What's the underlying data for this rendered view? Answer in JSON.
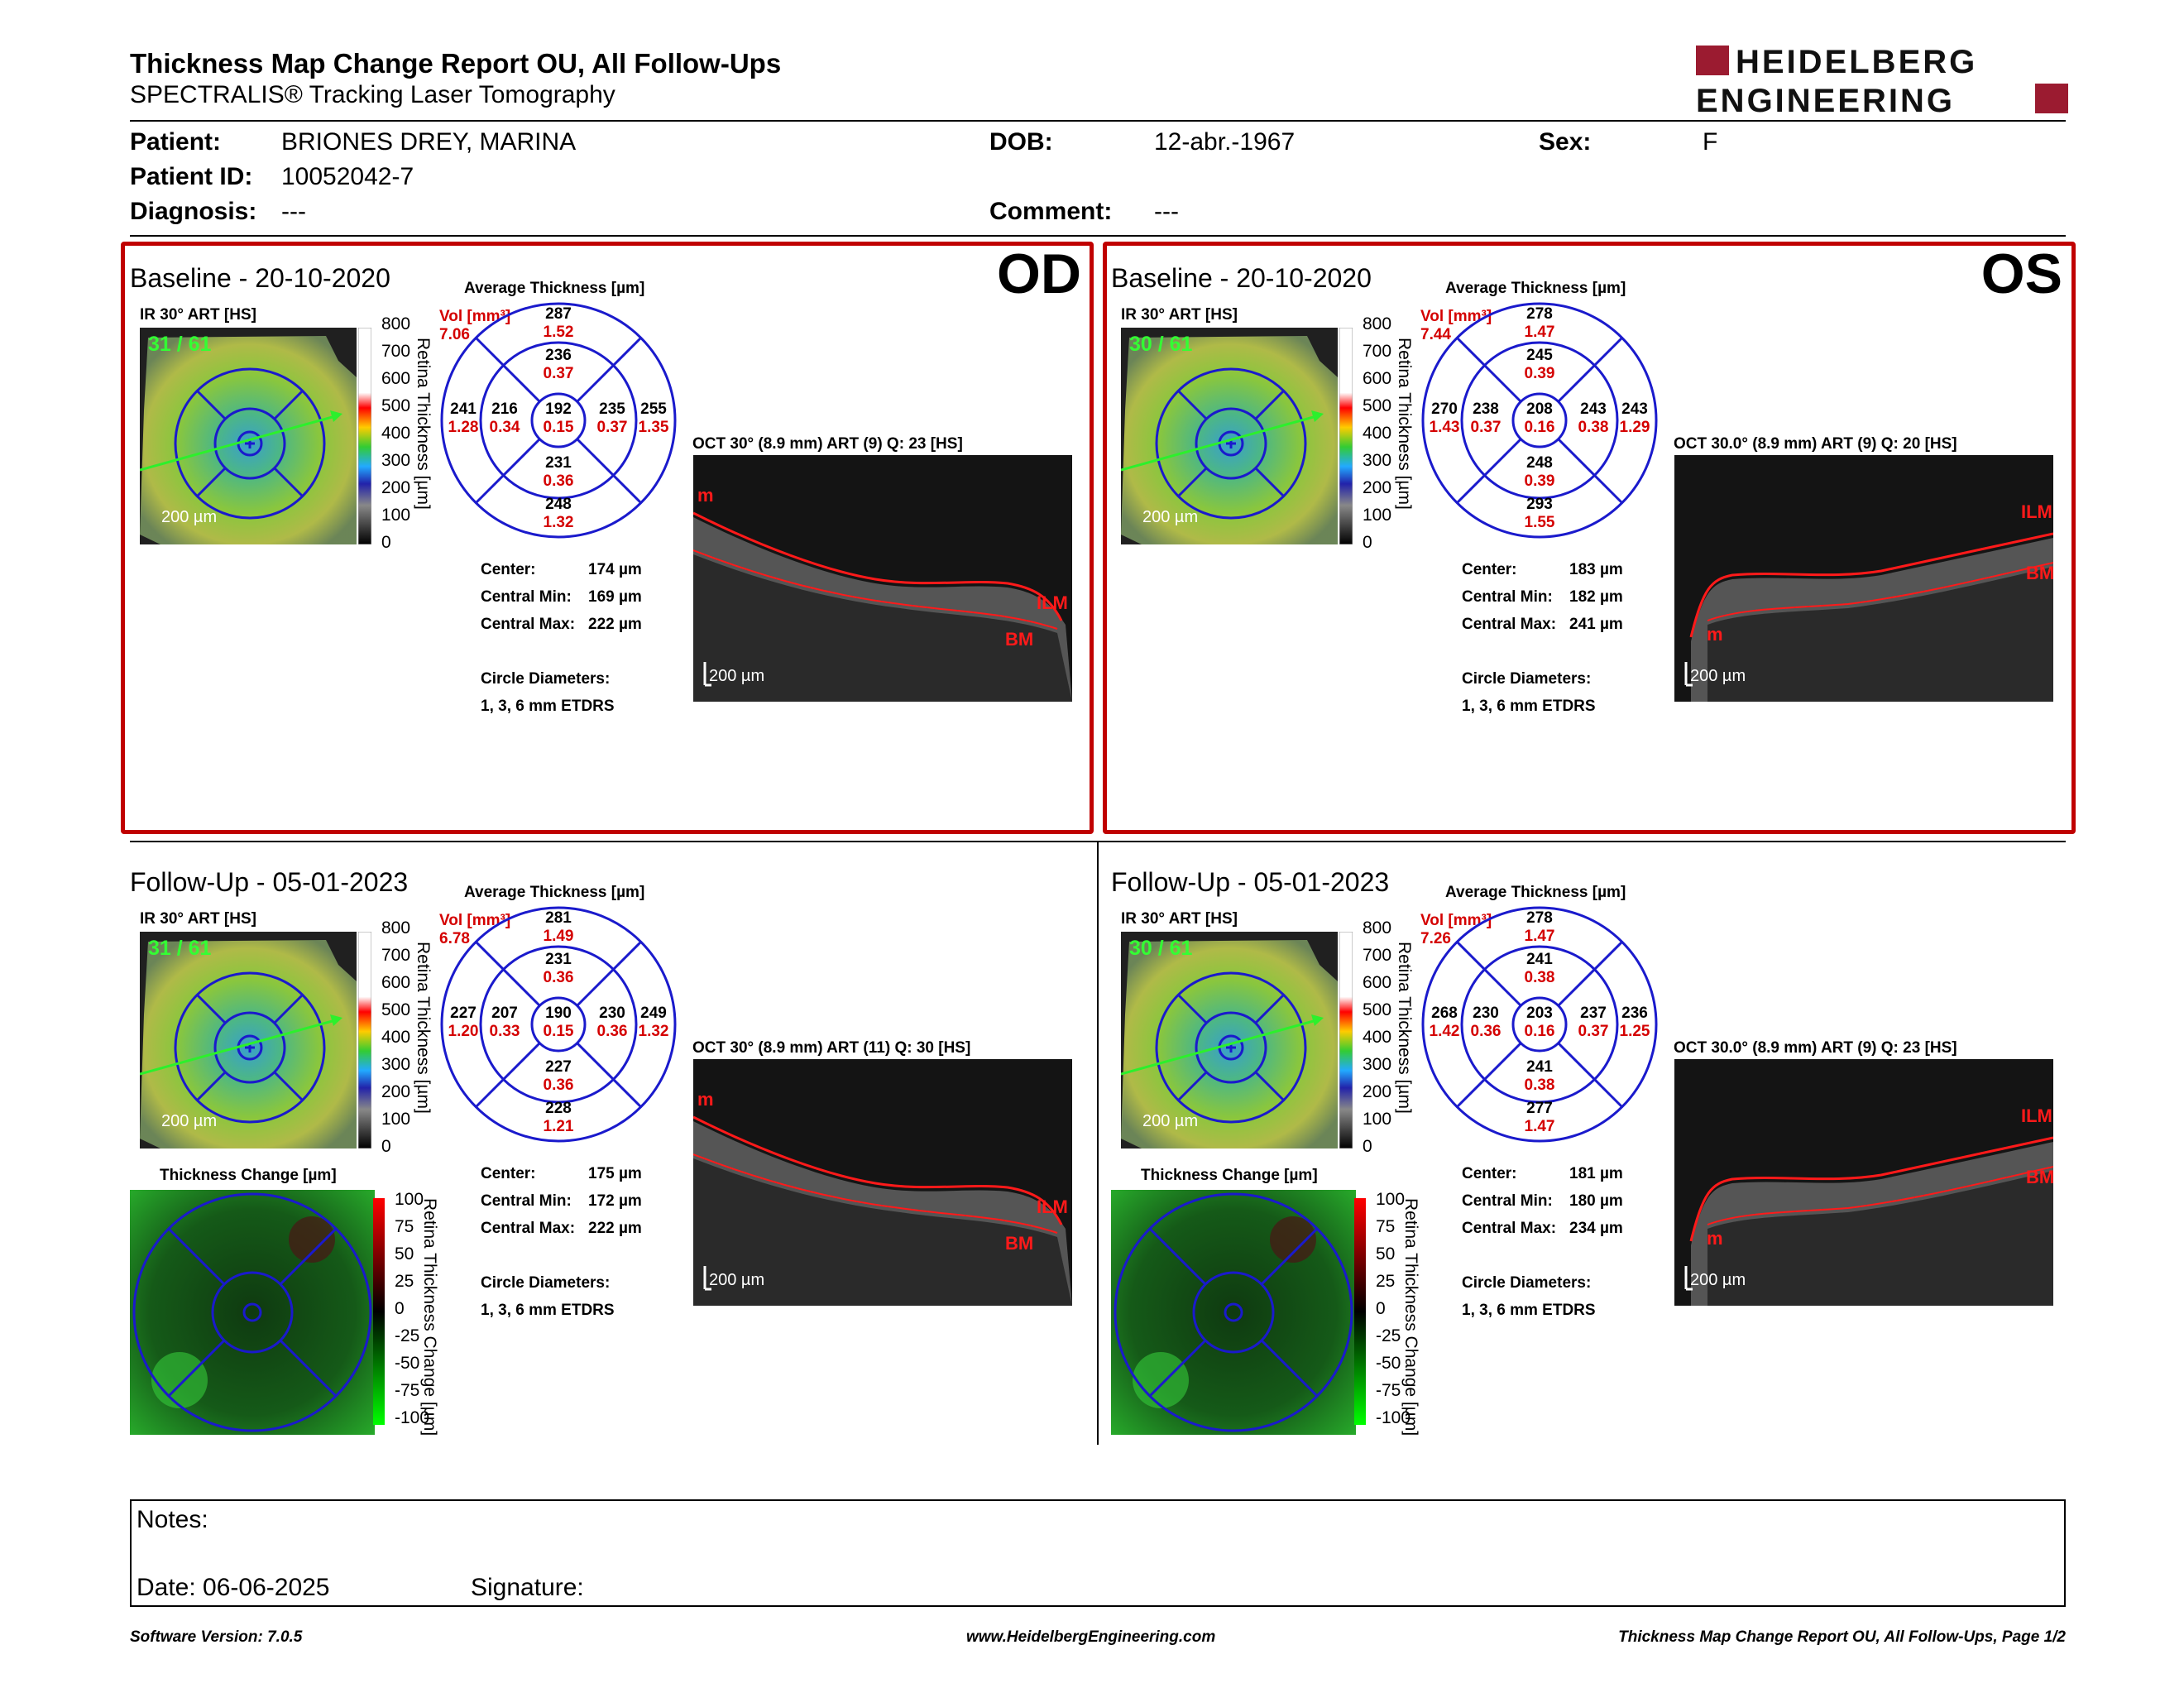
{
  "header": {
    "title": "Thickness Map Change Report OU, All Follow-Ups",
    "subtitle": "SPECTRALIS® Tracking Laser Tomography",
    "logo_line1": "HEIDELBERG",
    "logo_line2": "ENGINEERING"
  },
  "patient": {
    "patient_label": "Patient:",
    "patient_value": "BRIONES DREY, MARINA",
    "id_label": "Patient ID:",
    "id_value": "10052042-7",
    "diagnosis_label": "Diagnosis:",
    "diagnosis_value": "---",
    "dob_label": "DOB:",
    "dob_value": "12-abr.-1967",
    "comment_label": "Comment:",
    "comment_value": "---",
    "sex_label": "Sex:",
    "sex_value": "F"
  },
  "common": {
    "avg_label": "Average Thickness [µm]",
    "ir_label": "IR 30° ART [HS]",
    "vol_label": "Vol [mm³]",
    "scale_bar": "200 µm",
    "center_label": "Center:",
    "cmin_label": "Central Min:",
    "cmax_label": "Central Max:",
    "circle_label": "Circle Diameters:",
    "circle_value": "1, 3, 6 mm ETDRS",
    "thickness_axis": "Retina Thickness [µm]",
    "change_label": "Thickness Change [µm]",
    "change_axis": "Retina Thickness Change [µm]",
    "thick_ticks": [
      "800",
      "700",
      "600",
      "500",
      "400",
      "300",
      "200",
      "100",
      "0"
    ],
    "change_ticks": [
      "100",
      "75",
      "50",
      "25",
      "0",
      "-25",
      "-50",
      "-75",
      "-100"
    ],
    "ilm": "ILM",
    "bm": "BM",
    "m": "m"
  },
  "panels": {
    "od_base": {
      "title": "Baseline - 20-10-2020",
      "eye": "OD",
      "scan": "31 / 61",
      "vol": "7.06",
      "oct": "OCT 30° (8.9 mm) ART (9) Q: 23 [HS]",
      "center": "174 µm",
      "cmin": "169 µm",
      "cmax": "222 µm",
      "grid": {
        "c": "192",
        "cv": "0.15",
        "it": "236",
        "itv": "0.37",
        "ib": "231",
        "ibv": "0.36",
        "il": "216",
        "ilv": "0.34",
        "ir": "235",
        "irv": "0.37",
        "ot": "287",
        "otv": "1.52",
        "ob": "248",
        "obv": "1.32",
        "ol": "241",
        "olv": "1.28",
        "or": "255",
        "orv": "1.35"
      }
    },
    "os_base": {
      "title": "Baseline - 20-10-2020",
      "eye": "OS",
      "scan": "30 / 61",
      "vol": "7.44",
      "oct": "OCT 30.0° (8.9 mm) ART (9) Q: 20 [HS]",
      "center": "183 µm",
      "cmin": "182 µm",
      "cmax": "241 µm",
      "grid": {
        "c": "208",
        "cv": "0.16",
        "it": "245",
        "itv": "0.39",
        "ib": "248",
        "ibv": "0.39",
        "il": "238",
        "ilv": "0.37",
        "ir": "243",
        "irv": "0.38",
        "ot": "278",
        "otv": "1.47",
        "ob": "293",
        "obv": "1.55",
        "ol": "270",
        "olv": "1.43",
        "or": "243",
        "orv": "1.29"
      }
    },
    "od_fu": {
      "title": "Follow-Up - 05-01-2023",
      "scan": "31 / 61",
      "vol": "6.78",
      "oct": "OCT 30° (8.9 mm) ART (11) Q: 30 [HS]",
      "center": "175 µm",
      "cmin": "172 µm",
      "cmax": "222 µm",
      "grid": {
        "c": "190",
        "cv": "0.15",
        "it": "231",
        "itv": "0.36",
        "ib": "227",
        "ibv": "0.36",
        "il": "207",
        "ilv": "0.33",
        "ir": "230",
        "irv": "0.36",
        "ot": "281",
        "otv": "1.49",
        "ob": "228",
        "obv": "1.21",
        "ol": "227",
        "olv": "1.20",
        "or": "249",
        "orv": "1.32"
      }
    },
    "os_fu": {
      "title": "Follow-Up - 05-01-2023",
      "scan": "30 / 61",
      "vol": "7.26",
      "oct": "OCT 30.0° (8.9 mm) ART (9) Q: 23 [HS]",
      "center": "181 µm",
      "cmin": "180 µm",
      "cmax": "234 µm",
      "grid": {
        "c": "203",
        "cv": "0.16",
        "it": "241",
        "itv": "0.38",
        "ib": "241",
        "ibv": "0.38",
        "il": "230",
        "ilv": "0.36",
        "ir": "237",
        "irv": "0.37",
        "ot": "278",
        "otv": "1.47",
        "ob": "277",
        "obv": "1.47",
        "ol": "268",
        "olv": "1.42",
        "or": "236",
        "orv": "1.25"
      }
    }
  },
  "notes": {
    "notes_label": "Notes:",
    "date_label": "Date: 06-06-2025",
    "signature_label": "Signature:"
  },
  "footer": {
    "left": "Software Version: 7.0.5",
    "center": "www.HeidelbergEngineering.com",
    "right": "Thickness Map Change Report OU, All Follow-Ups, Page 1/2"
  },
  "colors": {
    "accent_red": "#c00000",
    "value_red": "#d40000",
    "grid_blue": "#1a1acc"
  }
}
